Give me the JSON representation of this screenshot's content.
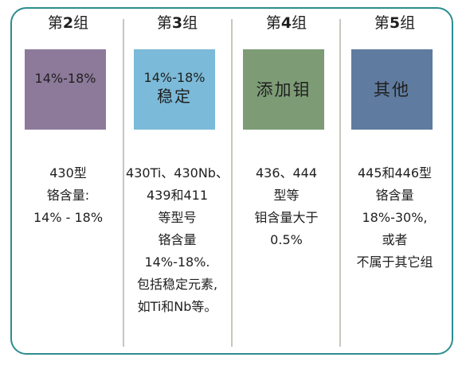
{
  "colors": {
    "frame_border": "#2e8c8e",
    "group2": "#8d7a9a",
    "group3": "#7bbad8",
    "group4": "#7d9c76",
    "group5": "#5f7b9f"
  },
  "groups": [
    {
      "heading_prefix": "第",
      "heading_num": "2",
      "heading_suffix": "组",
      "box_line1": "14%-18%",
      "box_line2": "",
      "desc": [
        "430型",
        "铬含量:",
        "14% - 18%"
      ]
    },
    {
      "heading_prefix": "第",
      "heading_num": "3",
      "heading_suffix": "组",
      "box_line1": "14%-18%",
      "box_line2": "稳定",
      "desc": [
        "430Ti、430Nb、",
        "439和411",
        "等型号",
        "铬含量",
        "14%-18%.",
        "包括稳定元素,",
        "如Ti和Nb等。"
      ]
    },
    {
      "heading_prefix": "第",
      "heading_num": "4",
      "heading_suffix": "组",
      "box_line1": "",
      "box_line2": "添加钼",
      "desc": [
        "436、444",
        "型等",
        "钼含量大于",
        "0.5%"
      ]
    },
    {
      "heading_prefix": "第",
      "heading_num": "5",
      "heading_suffix": "组",
      "box_line1": "",
      "box_line2": "其他",
      "desc": [
        "445和446型",
        "铬含量",
        "18%-30%,",
        "或者",
        "不属于其它组"
      ]
    }
  ]
}
